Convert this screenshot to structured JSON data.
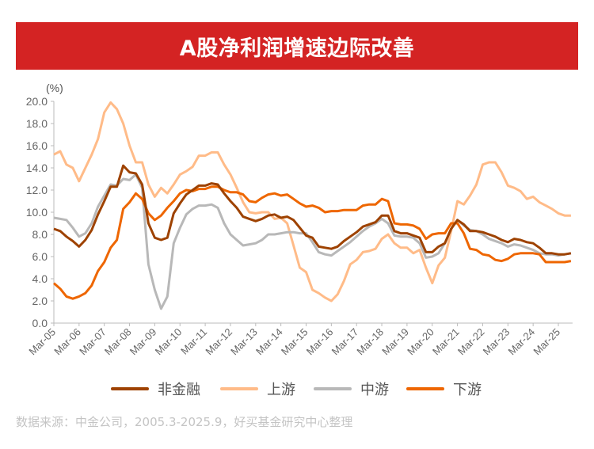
{
  "title": "A股净利润增速边际改善",
  "source": "数据来源：中金公司，2005.3-2025.9，好买基金研究中心整理",
  "chart_data": {
    "type": "line",
    "title": "A股净利润增速边际改善",
    "ylabel": "(%)",
    "xlabel": "",
    "ylim": [
      0,
      20
    ],
    "yticks": [
      "0.0",
      "2.0",
      "4.0",
      "6.0",
      "8.0",
      "10.0",
      "12.0",
      "14.0",
      "16.0",
      "18.0",
      "20.0"
    ],
    "xticks": [
      "Mar-05",
      "Mar-06",
      "Mar-07",
      "Mar-08",
      "Mar-09",
      "Mar-10",
      "Mar-11",
      "Mar-12",
      "Mar-13",
      "Mar-14",
      "Mar-15",
      "Mar-16",
      "Mar-17",
      "Mar-18",
      "Mar-19",
      "Mar-20",
      "Mar-21",
      "Mar-22",
      "Mar-23",
      "Mar-24",
      "Mar-25"
    ],
    "x_range": [
      "2005-03",
      "2025-09"
    ],
    "frequency": "quarterly",
    "grid": false,
    "legend": "bottom",
    "series": [
      {
        "name": "非金融",
        "color": "#9e4200",
        "values": [
          8.5,
          8.3,
          7.8,
          7.4,
          6.9,
          7.5,
          8.4,
          9.8,
          11.0,
          12.3,
          12.3,
          14.2,
          13.6,
          13.5,
          12.5,
          9.0,
          7.7,
          7.5,
          7.7,
          9.9,
          10.8,
          11.6,
          12.0,
          12.4,
          12.4,
          12.6,
          12.5,
          11.7,
          11.0,
          10.4,
          9.6,
          9.4,
          9.2,
          9.4,
          9.7,
          9.8,
          9.5,
          9.6,
          9.3,
          8.6,
          7.9,
          7.7,
          6.9,
          6.8,
          6.7,
          6.9,
          7.4,
          7.8,
          8.2,
          8.7,
          8.9,
          9.1,
          9.7,
          9.7,
          8.3,
          8.1,
          8.1,
          7.9,
          7.7,
          6.4,
          6.4,
          6.9,
          7.2,
          8.5,
          9.3,
          8.9,
          8.3,
          8.3,
          8.2,
          8.0,
          7.8,
          7.5,
          7.3,
          7.6,
          7.5,
          7.3,
          7.2,
          6.8,
          6.3,
          6.3,
          6.2,
          6.2,
          6.3
        ]
      },
      {
        "name": "上游",
        "color": "#ffbb88",
        "values": [
          15.2,
          15.5,
          14.3,
          14.0,
          12.8,
          14.0,
          15.2,
          16.6,
          19.0,
          19.9,
          19.3,
          18.0,
          16.0,
          14.5,
          14.5,
          12.5,
          11.4,
          12.2,
          11.7,
          12.5,
          13.4,
          13.7,
          14.1,
          15.1,
          15.1,
          15.4,
          15.4,
          14.3,
          13.4,
          12.2,
          10.9,
          10.0,
          9.9,
          10.0,
          10.0,
          9.4,
          9.5,
          9.0,
          7.0,
          5.0,
          4.6,
          3.0,
          2.7,
          2.3,
          2.0,
          2.6,
          3.8,
          5.3,
          5.7,
          6.4,
          6.5,
          6.7,
          7.6,
          8.0,
          7.2,
          6.8,
          6.8,
          6.3,
          6.6,
          5.0,
          3.6,
          5.2,
          5.9,
          8.3,
          11.0,
          10.7,
          11.5,
          12.5,
          14.3,
          14.5,
          14.5,
          13.6,
          12.4,
          12.2,
          11.9,
          11.2,
          11.4,
          10.9,
          10.6,
          10.3,
          9.9,
          9.7,
          9.7
        ]
      },
      {
        "name": "中游",
        "color": "#b8b8b8",
        "values": [
          9.5,
          9.4,
          9.3,
          8.6,
          7.8,
          8.1,
          9.0,
          10.5,
          11.5,
          12.5,
          12.4,
          13.0,
          12.9,
          13.4,
          12.2,
          5.3,
          3.0,
          1.3,
          2.4,
          7.2,
          8.6,
          9.8,
          10.3,
          10.6,
          10.6,
          10.7,
          10.4,
          9.0,
          8.0,
          7.5,
          7.0,
          7.1,
          7.2,
          7.5,
          8.0,
          8.0,
          8.1,
          8.2,
          8.2,
          8.1,
          8.1,
          7.3,
          6.4,
          6.2,
          6.1,
          6.5,
          6.9,
          7.3,
          7.8,
          8.3,
          8.7,
          9.0,
          9.4,
          9.0,
          7.9,
          7.8,
          7.8,
          7.7,
          7.2,
          5.9,
          6.0,
          6.3,
          7.2,
          8.5,
          9.3,
          8.8,
          8.4,
          8.3,
          8.0,
          7.6,
          7.4,
          7.2,
          6.9,
          7.1,
          7.0,
          6.8,
          6.6,
          6.3,
          6.2,
          6.2,
          6.1,
          6.2,
          6.3
        ]
      },
      {
        "name": "下游",
        "color": "#ee6600",
        "values": [
          3.6,
          3.1,
          2.4,
          2.2,
          2.4,
          2.7,
          3.4,
          4.7,
          5.5,
          6.8,
          7.5,
          10.3,
          10.9,
          11.7,
          11.2,
          9.9,
          9.3,
          9.7,
          10.4,
          11.0,
          11.7,
          12.0,
          11.9,
          12.1,
          12.1,
          12.3,
          12.3,
          12.0,
          11.8,
          11.8,
          11.6,
          11.0,
          10.9,
          11.3,
          11.6,
          11.7,
          11.5,
          11.6,
          11.2,
          10.8,
          10.5,
          10.6,
          10.4,
          10.0,
          10.1,
          10.1,
          10.2,
          10.2,
          10.2,
          10.6,
          10.7,
          10.7,
          11.2,
          11.0,
          9.0,
          8.9,
          8.9,
          8.8,
          8.5,
          7.6,
          8.0,
          8.1,
          8.1,
          9.0,
          9.0,
          8.1,
          6.7,
          6.6,
          6.2,
          6.1,
          5.7,
          5.6,
          5.8,
          6.2,
          6.3,
          6.3,
          6.3,
          6.2,
          5.5,
          5.5,
          5.5,
          5.5,
          5.6
        ]
      }
    ]
  }
}
